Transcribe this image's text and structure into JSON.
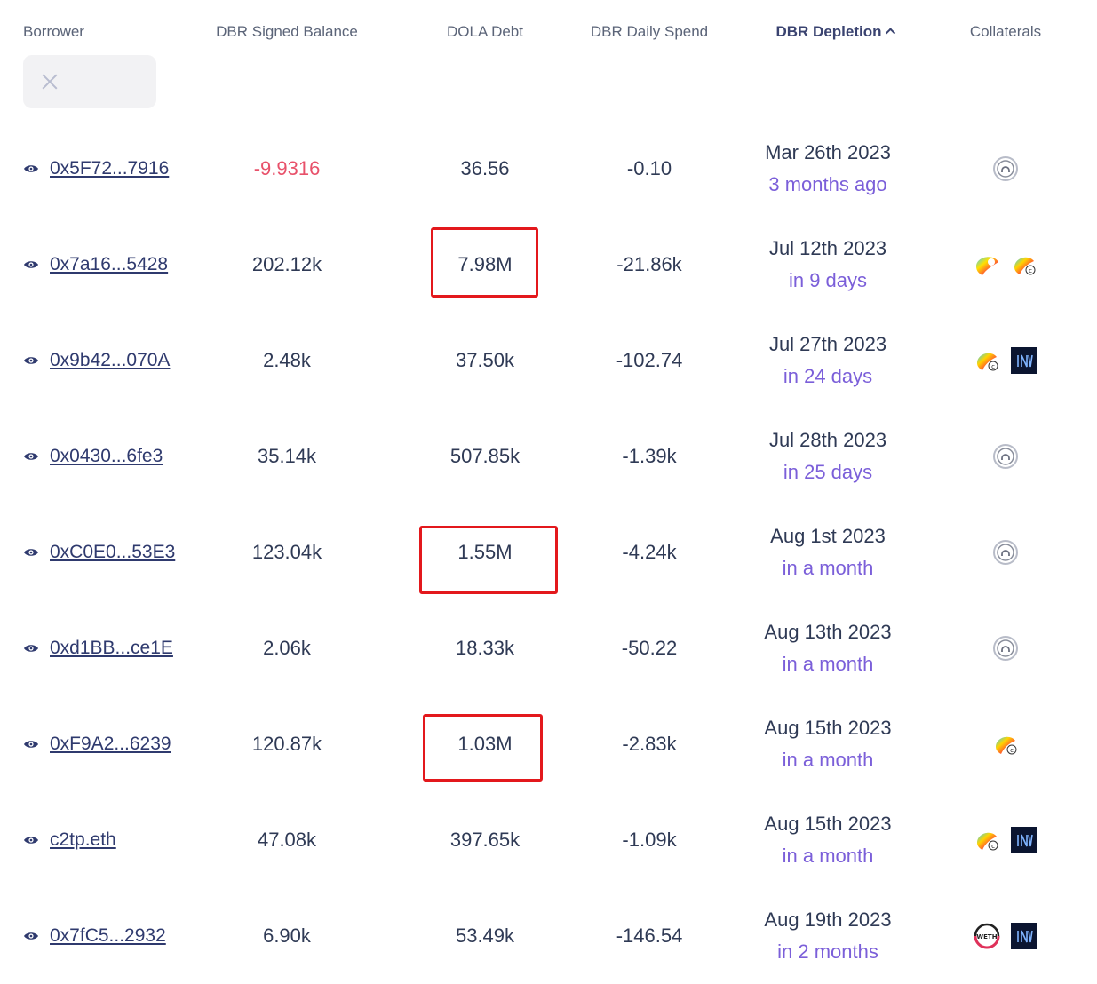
{
  "columns": {
    "borrower": "Borrower",
    "dbr_balance": "DBR Signed Balance",
    "dola_debt": "DOLA Debt",
    "dbr_spend": "DBR Daily Spend",
    "dbr_depletion": "DBR Depletion",
    "collaterals": "Collaterals"
  },
  "colors": {
    "accent_purple": "#7b5fd9",
    "negative_red": "#e8516a",
    "highlight_red": "#e3181c"
  },
  "rows": [
    {
      "address": "0x5F72...7916",
      "balance": "-9.9316",
      "negative": true,
      "debt": "36.56",
      "spend": "-0.10",
      "date": "Mar 26th 2023",
      "relative": "3 months ago",
      "collaterals": [
        "generic-token-icon"
      ],
      "highlight_debt": false
    },
    {
      "address": "0x7a16...5428",
      "balance": "202.12k",
      "negative": false,
      "debt": "7.98M",
      "spend": "-21.86k",
      "date": "Jul 12th 2023",
      "relative": "in 9 days",
      "collaterals": [
        "curve-lp-icon",
        "curve-crv-icon"
      ],
      "highlight_debt": true
    },
    {
      "address": "0x9b42...070A",
      "balance": "2.48k",
      "negative": false,
      "debt": "37.50k",
      "spend": "-102.74",
      "date": "Jul 27th 2023",
      "relative": "in 24 days",
      "collaterals": [
        "curve-crv-icon",
        "inv-token-icon"
      ],
      "highlight_debt": false
    },
    {
      "address": "0x0430...6fe3",
      "balance": "35.14k",
      "negative": false,
      "debt": "507.85k",
      "spend": "-1.39k",
      "date": "Jul 28th 2023",
      "relative": "in 25 days",
      "collaterals": [
        "generic-token-icon"
      ],
      "highlight_debt": false
    },
    {
      "address": "0xC0E0...53E3",
      "balance": "123.04k",
      "negative": false,
      "debt": "1.55M",
      "spend": "-4.24k",
      "date": "Aug 1st 2023",
      "relative": "in a month",
      "collaterals": [
        "generic-token-icon"
      ],
      "highlight_debt": true
    },
    {
      "address": "0xd1BB...ce1E",
      "balance": "2.06k",
      "negative": false,
      "debt": "18.33k",
      "spend": "-50.22",
      "date": "Aug 13th 2023",
      "relative": "in a month",
      "collaterals": [
        "generic-token-icon"
      ],
      "highlight_debt": false
    },
    {
      "address": "0xF9A2...6239",
      "balance": "120.87k",
      "negative": false,
      "debt": "1.03M",
      "spend": "-2.83k",
      "date": "Aug 15th 2023",
      "relative": "in a month",
      "collaterals": [
        "curve-crv-icon"
      ],
      "highlight_debt": true
    },
    {
      "address": "c2tp.eth",
      "balance": "47.08k",
      "negative": false,
      "debt": "397.65k",
      "spend": "-1.09k",
      "date": "Aug 15th 2023",
      "relative": "in a month",
      "collaterals": [
        "curve-crv-icon",
        "inv-token-icon"
      ],
      "highlight_debt": false
    },
    {
      "address": "0x7fC5...2932",
      "balance": "6.90k",
      "negative": false,
      "debt": "53.49k",
      "spend": "-146.54",
      "date": "Aug 19th 2023",
      "relative": "in 2 months",
      "collaterals": [
        "weth-token-icon",
        "inv-token-icon"
      ],
      "highlight_debt": false
    }
  ]
}
